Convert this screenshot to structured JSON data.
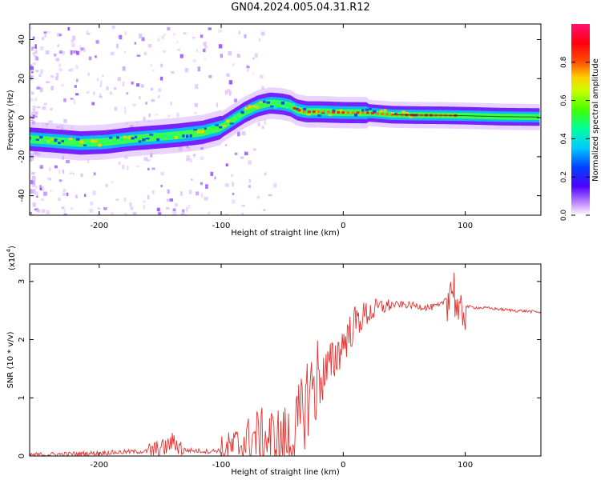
{
  "title": "GN04.2024.005.04.31.R12",
  "chart_data": [
    {
      "type": "heatmap",
      "name": "spectrogram",
      "title": "GN04.2024.005.04.31.R12",
      "xlabel": "Height of straight line (km)",
      "ylabel": "Frequency (Hz)",
      "xlim": [
        -257,
        162
      ],
      "ylim": [
        -50,
        48
      ],
      "xticks": [
        -200,
        -100,
        0,
        100
      ],
      "xtick_labels": [
        "-200",
        "-100",
        "0",
        "100"
      ],
      "yticks": [
        -40,
        -20,
        0,
        20,
        40
      ],
      "ytick_labels": [
        "-40",
        "-20",
        "0",
        "20",
        "40"
      ],
      "ridge_x": [
        -257,
        -235,
        -215,
        -195,
        -175,
        -155,
        -135,
        -115,
        -100,
        -90,
        -80,
        -70,
        -60,
        -50,
        -43,
        -38,
        -30,
        -20,
        -10,
        0,
        20,
        40,
        60,
        80,
        100,
        130,
        162
      ],
      "ridge_y": [
        -11,
        -12,
        -13,
        -12.5,
        -11,
        -10,
        -9,
        -7.5,
        -5,
        -1,
        3,
        6,
        7.5,
        7,
        6,
        4,
        3,
        3,
        2.8,
        2.6,
        2.5,
        1.5,
        1.3,
        1.2,
        1,
        0.5,
        0.3
      ],
      "colorbar": {
        "label": "Normalized spectral amplitude",
        "range": [
          0,
          1
        ],
        "ticks": [
          0.0,
          0.2,
          0.4,
          0.6,
          0.8
        ],
        "tick_labels": [
          "0.0",
          "0.2",
          "0.4",
          "0.6",
          "0.8"
        ]
      }
    },
    {
      "type": "line",
      "name": "snr",
      "xlabel": "Height of straight line (km)",
      "ylabel": "SNR (10 * v/v)",
      "scale_label": "(x10",
      "scale_exp": "4",
      "scale_close": ")",
      "xlim": [
        -257,
        162
      ],
      "ylim": [
        0,
        3.3
      ],
      "xticks": [
        -200,
        -100,
        0,
        100
      ],
      "xtick_labels": [
        "-200",
        "-100",
        "0",
        "100"
      ],
      "yticks": [
        0,
        1,
        2,
        3
      ],
      "ytick_labels": [
        "0",
        "1",
        "2",
        "3"
      ],
      "series": [
        {
          "name": "SNR",
          "color": "#e8312f",
          "x": [
            -257,
            -230,
            -200,
            -180,
            -160,
            -145,
            -140,
            -130,
            -110,
            -100,
            -90,
            -80,
            -70,
            -60,
            -50,
            -40,
            -35,
            -30,
            -25,
            -20,
            -15,
            -10,
            -5,
            0,
            5,
            10,
            20,
            30,
            40,
            50,
            60,
            70,
            80,
            85,
            90,
            93,
            95,
            98,
            100,
            110,
            120,
            130,
            140,
            150,
            162
          ],
          "y": [
            0.02,
            0.03,
            0.05,
            0.07,
            0.08,
            0.15,
            0.25,
            0.1,
            0.08,
            0.1,
            0.15,
            0.25,
            0.35,
            0.3,
            0.25,
            0.3,
            0.6,
            1.0,
            1.2,
            1.3,
            1.4,
            1.55,
            1.75,
            1.95,
            2.1,
            2.3,
            2.45,
            2.55,
            2.6,
            2.6,
            2.58,
            2.55,
            2.58,
            2.75,
            2.95,
            2.6,
            2.2,
            2.55,
            2.57,
            2.55,
            2.54,
            2.52,
            2.5,
            2.49,
            2.47
          ]
        }
      ]
    }
  ]
}
